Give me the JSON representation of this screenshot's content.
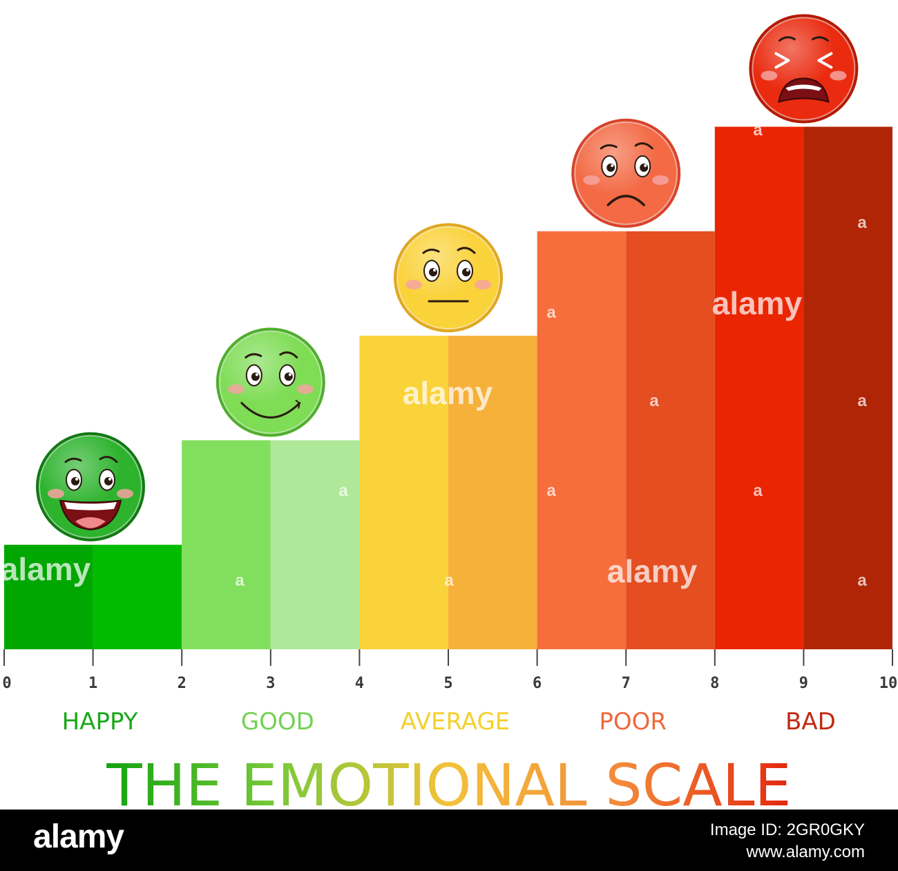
{
  "chart_data": {
    "type": "bar",
    "title": "THE EMOTIONAL SCALE",
    "x_ticks": [
      "0",
      "1",
      "2",
      "3",
      "4",
      "5",
      "6",
      "7",
      "8",
      "9",
      "10"
    ],
    "xlim": [
      0,
      10
    ],
    "ylim": [
      0,
      5
    ],
    "categories": [
      "HAPPY",
      "GOOD",
      "AVERAGE",
      "POOR",
      "BAD"
    ],
    "values": [
      1,
      2,
      3,
      4,
      5
    ],
    "colors": {
      "HAPPY": {
        "light": "#00a700",
        "dark": "#00bb00",
        "label": "#1aa81a"
      },
      "GOOD": {
        "light": "#82df5e",
        "dark": "#afe899",
        "label": "#72d152"
      },
      "AVERAGE": {
        "light": "#fad23a",
        "dark": "#f6b13a",
        "label": "#f5d02c"
      },
      "POOR": {
        "light": "#f76e3d",
        "dark": "#e44e20",
        "label": "#f0683c"
      },
      "BAD": {
        "light": "#ea2502",
        "dark": "#b02506",
        "label": "#bf2a12"
      }
    },
    "faces": [
      {
        "mood": "happy-face-icon",
        "fill": "#2db32d",
        "rim": "#117a11"
      },
      {
        "mood": "smile-face-icon",
        "fill": "#7edc55",
        "rim": "#4fae2c"
      },
      {
        "mood": "neutral-face-icon",
        "fill": "#fad23a",
        "rim": "#e0a820"
      },
      {
        "mood": "sad-face-icon",
        "fill": "#f36a45",
        "rim": "#d8432a"
      },
      {
        "mood": "crying-face-icon",
        "fill": "#ea2b10",
        "rim": "#b41a05"
      }
    ],
    "title_gradient": [
      "#12a312",
      "#7ac93a",
      "#f3c23a",
      "#f38a3a",
      "#e3260e"
    ]
  },
  "watermark": "alamy",
  "watermark_small": "a",
  "footer": {
    "brand": "alamy",
    "image_id": "Image ID: 2GR0GKY",
    "site": "www.alamy.com"
  }
}
